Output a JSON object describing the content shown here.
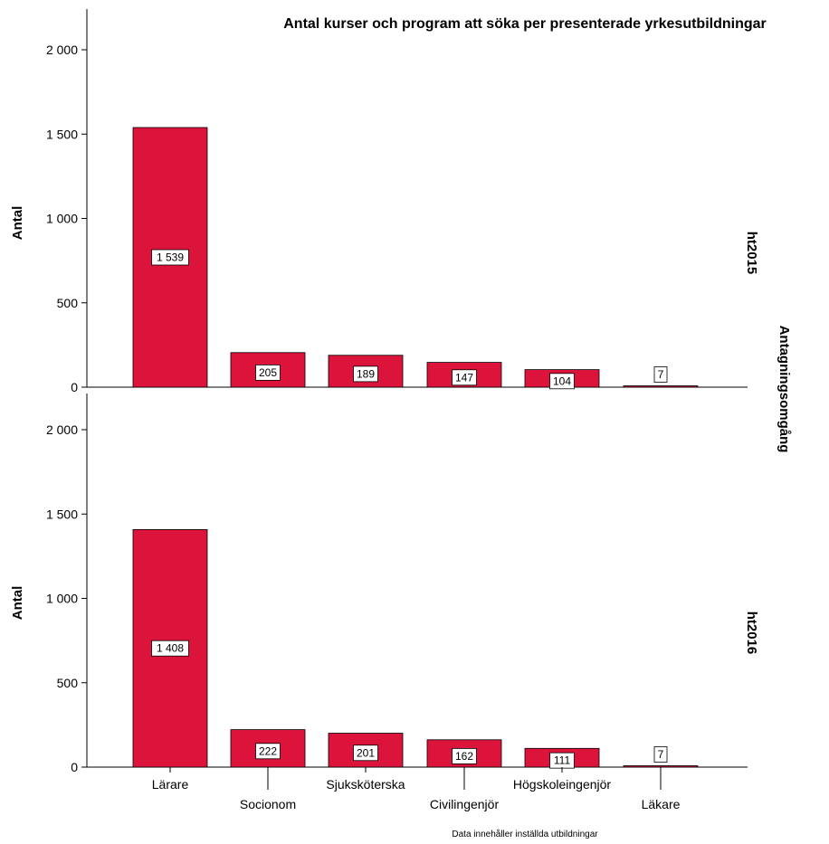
{
  "chart_data": {
    "type": "bar",
    "title": "Antal kurser och program att söka per presenterade yrkesutbildningar",
    "ylabel": "Antal",
    "facet_label": "Antagningsomgång",
    "footnote": "Data innehåller inställda utbildningar",
    "categories": [
      "Lärare",
      "Socionom",
      "Sjuksköterska",
      "Civilingenjör",
      "Högskoleingenjör",
      "Läkare"
    ],
    "ylim": [
      0,
      2000
    ],
    "yticks": [
      0,
      500,
      1000,
      1500,
      2000
    ],
    "ytick_labels": [
      "0",
      "500",
      "1 000",
      "1 500",
      "2 000"
    ],
    "bar_color": "#DC143C",
    "grid": false,
    "panels": [
      {
        "name": "ht2015",
        "values": [
          1539,
          205,
          189,
          147,
          104,
          7
        ],
        "value_labels": [
          "1 539",
          "205",
          "189",
          "147",
          "104",
          "7"
        ]
      },
      {
        "name": "ht2016",
        "values": [
          1408,
          222,
          201,
          162,
          111,
          7
        ],
        "value_labels": [
          "1 408",
          "222",
          "201",
          "162",
          "111",
          "7"
        ]
      }
    ]
  }
}
